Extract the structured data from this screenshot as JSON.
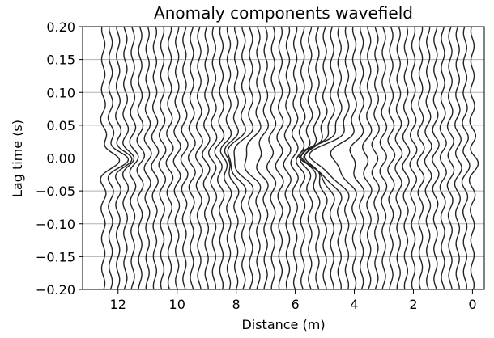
{
  "chart_data": {
    "type": "line",
    "title": "Anomaly components wavefield",
    "xlabel": "Distance (m)",
    "ylabel": "Lag time (s)",
    "xlim": [
      13.2,
      -0.4
    ],
    "ylim": [
      -0.2,
      0.2
    ],
    "x_inverted": true,
    "x_ticks": [
      12,
      10,
      8,
      6,
      4,
      2,
      0
    ],
    "x_tick_labels": [
      "12",
      "10",
      "8",
      "6",
      "4",
      "2",
      "0"
    ],
    "y_ticks": [
      0.2,
      0.15,
      0.1,
      0.05,
      0.0,
      -0.05,
      -0.1,
      -0.15,
      -0.2
    ],
    "y_tick_labels": [
      "0.20",
      "0.15",
      "0.10",
      "0.05",
      "0.00",
      "−0.05",
      "−0.10",
      "−0.15",
      "−0.20"
    ],
    "grid": {
      "horizontal": true,
      "vertical": false
    },
    "line_color": "#222222",
    "trace_offsets_m": [
      0,
      0.25,
      0.5,
      0.75,
      1.0,
      1.25,
      1.5,
      1.75,
      2.0,
      2.25,
      2.5,
      2.75,
      3.0,
      3.25,
      3.5,
      3.75,
      4.0,
      4.25,
      4.5,
      4.75,
      5.0,
      5.25,
      5.5,
      5.75,
      6.0,
      6.25,
      6.5,
      6.75,
      7.0,
      7.25,
      7.5,
      7.75,
      8.0,
      8.25,
      8.5,
      8.75,
      9.0,
      9.25,
      9.5,
      9.75,
      10.0,
      10.25,
      10.5,
      10.75,
      11.0,
      11.25,
      11.5,
      11.75,
      12.0,
      12.25,
      12.5
    ],
    "trace_amplitude_m": 0.12,
    "trace_frequency_hz": 22,
    "anomalies": [
      {
        "center_m": 12.5,
        "peak_deflection_m": -0.45,
        "width_s": 0.012
      },
      {
        "center_m": 7.6,
        "peak_deflection_m": 0.55,
        "width_s": 0.018
      },
      {
        "center_m": 4.5,
        "peak_deflection_m": 1.1,
        "width_s": 0.02
      },
      {
        "center_m": 0.0,
        "peak_deflection_m": -0.12,
        "width_s": 0.01
      }
    ]
  }
}
